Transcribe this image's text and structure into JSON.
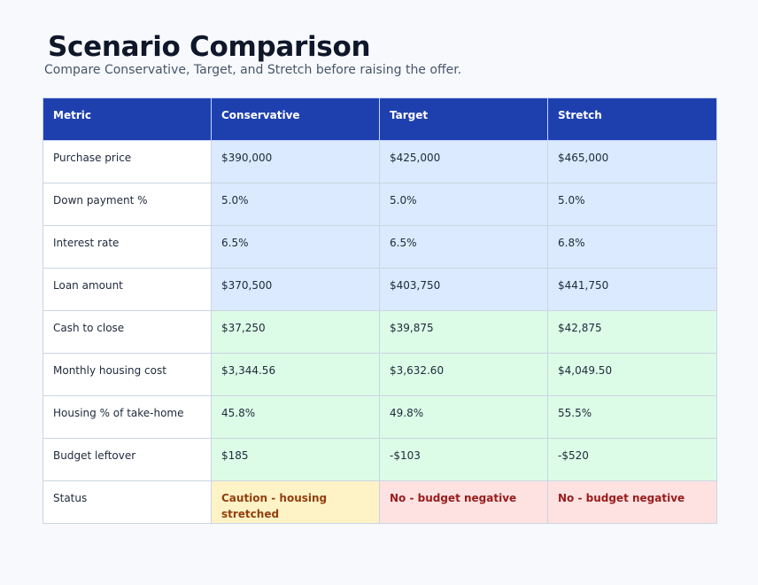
{
  "header": {
    "title": "Scenario Comparison",
    "subtitle": "Compare Conservative, Target, and Stretch before raising the offer."
  },
  "table": {
    "columns": [
      "Metric",
      "Conservative",
      "Target",
      "Stretch"
    ],
    "rows": [
      {
        "metric": "Purchase price",
        "values": [
          "$390,000",
          "$425,000",
          "$465,000"
        ]
      },
      {
        "metric": "Down payment %",
        "values": [
          "5.0%",
          "5.0%",
          "5.0%"
        ]
      },
      {
        "metric": "Interest rate",
        "values": [
          "6.5%",
          "6.5%",
          "6.8%"
        ]
      },
      {
        "metric": "Loan amount",
        "values": [
          "$370,500",
          "$403,750",
          "$441,750"
        ]
      },
      {
        "metric": "Cash to close",
        "values": [
          "$37,250",
          "$39,875",
          "$42,875"
        ]
      },
      {
        "metric": "Monthly housing cost",
        "values": [
          "$3,344.56",
          "$3,632.60",
          "$4,049.50"
        ]
      },
      {
        "metric": "Housing % of take-home",
        "values": [
          "45.8%",
          "49.8%",
          "55.5%"
        ]
      },
      {
        "metric": "Budget leftover",
        "values": [
          "$185",
          "-$103",
          "-$520"
        ]
      },
      {
        "metric": "Status",
        "values": [
          "Caution - housing stretched",
          "No - budget negative",
          "No - budget negative"
        ]
      }
    ]
  },
  "colors": {
    "header_bg": "#1e40af",
    "input_rows_bg": "#dbeafe",
    "result_rows_bg": "#dcfce7",
    "caution_bg": "#fef3c7",
    "negative_bg": "#fee2e2",
    "status_text": "#991b1b"
  }
}
